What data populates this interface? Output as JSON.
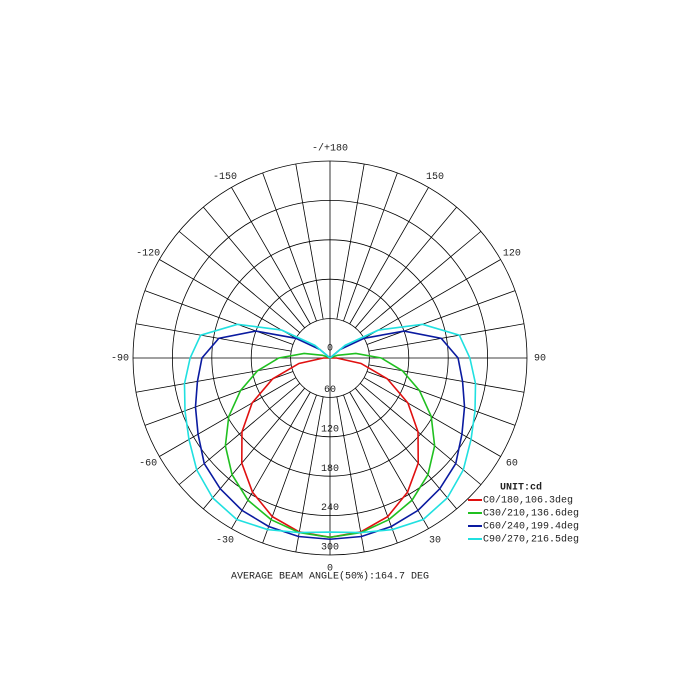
{
  "chart_data": {
    "type": "polar",
    "title": "AVERAGE BEAM ANGLE(50%):164.7 DEG",
    "legend_title": "UNIT:cd",
    "legend": "lower right",
    "theta": [
      -180,
      -170,
      -160,
      -150,
      -140,
      -130,
      -120,
      -110,
      -100,
      -90,
      -80,
      -70,
      -60,
      -50,
      -40,
      -30,
      -20,
      -10,
      0,
      10,
      20,
      30,
      40,
      50,
      60,
      70,
      80,
      90,
      100,
      110,
      120,
      130,
      140,
      150,
      160,
      170,
      180
    ],
    "theta_ticks": [
      {
        "value": 180,
        "label": "-/+180"
      },
      -150,
      150,
      -120,
      120,
      -90,
      90,
      -60,
      60,
      -30,
      30,
      0
    ],
    "rlim": [
      0,
      300
    ],
    "rticks": [
      0,
      60,
      120,
      180,
      240,
      300
    ],
    "grid": true,
    "series": [
      {
        "name": "C0/180,106.3deg",
        "color": "#e01010",
        "values": [
          0,
          0,
          0,
          0,
          0,
          0,
          0,
          0,
          0,
          10,
          48,
          93,
          137,
          175,
          209,
          236,
          257,
          269,
          273,
          269,
          257,
          236,
          209,
          175,
          137,
          93,
          48,
          10,
          0,
          0,
          0,
          0,
          0,
          0,
          0,
          0,
          0
        ]
      },
      {
        "name": "C30/210,136.6deg",
        "color": "#20c020",
        "values": [
          0,
          0,
          0,
          0,
          0,
          0,
          0,
          12,
          40,
          78,
          112,
          145,
          178,
          208,
          232,
          250,
          262,
          270,
          273,
          270,
          262,
          250,
          232,
          208,
          178,
          145,
          112,
          78,
          40,
          12,
          0,
          0,
          0,
          0,
          0,
          0,
          0
        ]
      },
      {
        "name": "C60/240,199.4deg",
        "color": "#0a1aa0",
        "values": [
          0,
          0,
          0,
          0,
          0,
          20,
          60,
          120,
          172,
          195,
          205,
          218,
          232,
          250,
          260,
          268,
          273,
          276,
          276,
          276,
          273,
          268,
          260,
          250,
          232,
          218,
          205,
          195,
          172,
          120,
          60,
          20,
          0,
          0,
          0,
          0,
          0
        ]
      },
      {
        "name": "C90/270,216.5deg",
        "color": "#20e0e0",
        "values": [
          0,
          0,
          0,
          0,
          0,
          30,
          85,
          150,
          200,
          213,
          225,
          235,
          248,
          265,
          278,
          284,
          278,
          270,
          265,
          270,
          278,
          284,
          278,
          265,
          248,
          235,
          225,
          213,
          200,
          150,
          85,
          30,
          0,
          0,
          0,
          0,
          0
        ]
      }
    ]
  }
}
